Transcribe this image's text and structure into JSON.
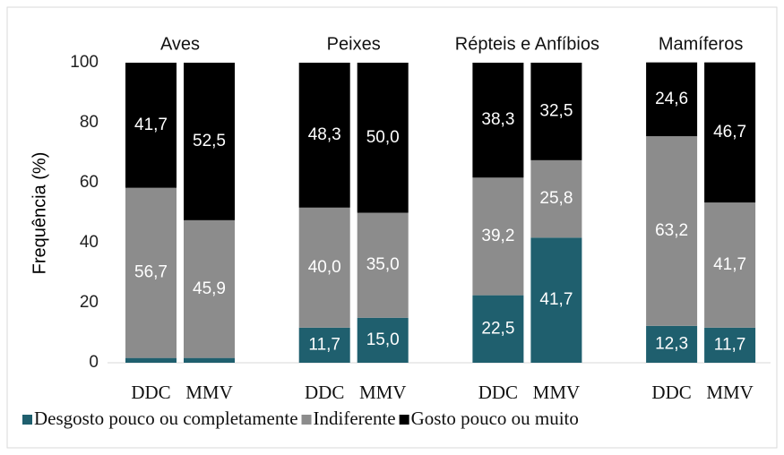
{
  "chart_data": {
    "type": "stacked_bar",
    "groups": [
      "Aves",
      "Peixes",
      "Répteis e Anfíbios",
      "Mamíferos"
    ],
    "categories": [
      "DDC",
      "MMV",
      "DDC",
      "MMV",
      "DDC",
      "MMV",
      "DDC",
      "MMV"
    ],
    "y_label": "Frequência (%)",
    "ylim": [
      0,
      100
    ],
    "yticks": [
      0,
      20,
      40,
      60,
      80,
      100
    ],
    "series": [
      {
        "name": "Desgosto pouco ou completamente",
        "color": "#1f5f6e",
        "values": [
          1.6,
          1.6,
          11.7,
          15.0,
          22.5,
          41.7,
          12.3,
          11.7
        ],
        "value_labels": [
          null,
          null,
          "11,7",
          "15,0",
          "22,5",
          "41,7",
          "12,3",
          "11,7"
        ]
      },
      {
        "name": "Indiferente",
        "color": "#8c8c8c",
        "values": [
          56.7,
          45.9,
          40.0,
          35.0,
          39.2,
          25.8,
          63.2,
          41.7
        ],
        "value_labels": [
          "56,7",
          "45,9",
          "40,0",
          "35,0",
          "39,2",
          "25,8",
          "63,2",
          "41,7"
        ]
      },
      {
        "name": "Gosto pouco ou muito",
        "color": "#000000",
        "values": [
          41.7,
          52.5,
          48.3,
          50.0,
          38.3,
          32.5,
          24.6,
          46.7
        ],
        "value_labels": [
          "41,7",
          "52,5",
          "48,3",
          "50,0",
          "38,3",
          "32,5",
          "24,6",
          "46,7"
        ]
      }
    ],
    "legend": "bottom"
  }
}
